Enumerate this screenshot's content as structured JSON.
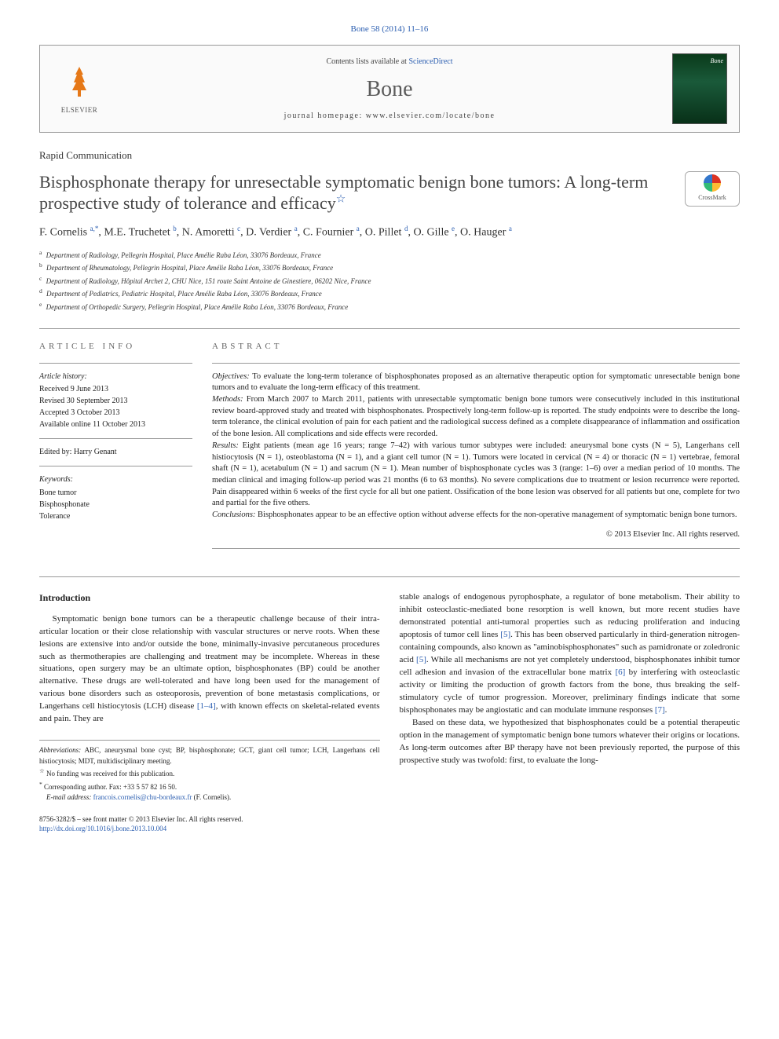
{
  "journal_ref": "Bone 58 (2014) 11–16",
  "header": {
    "contents_prefix": "Contents lists available at ",
    "contents_link": "ScienceDirect",
    "journal_name": "Bone",
    "homepage_prefix": "journal homepage: ",
    "homepage": "www.elsevier.com/locate/bone",
    "publisher": "ELSEVIER",
    "cover_label": "Bone"
  },
  "article_type": "Rapid Communication",
  "title": "Bisphosphonate therapy for unresectable symptomatic benign bone tumors: A long-term prospective study of tolerance and efficacy",
  "title_star": "☆",
  "crossmark": "CrossMark",
  "authors_html": "F. Cornelis <sup>a,*</sup>, M.E. Truchetet <sup>b</sup>, N. Amoretti <sup>c</sup>, D. Verdier <sup>a</sup>, C. Fournier <sup>a</sup>, O. Pillet <sup>d</sup>, O. Gille <sup>e</sup>, O. Hauger <sup>a</sup>",
  "affiliations": [
    {
      "sup": "a",
      "text": "Department of Radiology, Pellegrin Hospital, Place Amélie Raba Léon, 33076 Bordeaux, France"
    },
    {
      "sup": "b",
      "text": "Department of Rheumatology, Pellegrin Hospital, Place Amélie Raba Léon, 33076 Bordeaux, France"
    },
    {
      "sup": "c",
      "text": "Department of Radiology, Hôpital Archet 2, CHU Nice, 151 route Saint Antoine de Ginestiere, 06202 Nice, France"
    },
    {
      "sup": "d",
      "text": "Department of Pediatrics, Pediatric Hospital, Place Amélie Raba Léon, 33076 Bordeaux, France"
    },
    {
      "sup": "e",
      "text": "Department of Orthopedic Surgery, Pellegrin Hospital, Place Amélie Raba Léon, 33076 Bordeaux, France"
    }
  ],
  "info": {
    "heading": "ARTICLE INFO",
    "history_label": "Article history:",
    "received": "Received 9 June 2013",
    "revised": "Revised 30 September 2013",
    "accepted": "Accepted 3 October 2013",
    "online": "Available online 11 October 2013",
    "edited_by": "Edited by: Harry Genant",
    "keywords_label": "Keywords:",
    "keywords": [
      "Bone tumor",
      "Bisphosphonate",
      "Tolerance"
    ]
  },
  "abstract": {
    "heading": "ABSTRACT",
    "objectives_label": "Objectives:",
    "objectives": "To evaluate the long-term tolerance of bisphosphonates proposed as an alternative therapeutic option for symptomatic unresectable benign bone tumors and to evaluate the long-term efficacy of this treatment.",
    "methods_label": "Methods:",
    "methods": "From March 2007 to March 2011, patients with unresectable symptomatic benign bone tumors were consecutively included in this institutional review board-approved study and treated with bisphosphonates. Prospectively long-term follow-up is reported. The study endpoints were to describe the long-term tolerance, the clinical evolution of pain for each patient and the radiological success defined as a complete disappearance of inflammation and ossification of the bone lesion. All complications and side effects were recorded.",
    "results_label": "Results:",
    "results": "Eight patients (mean age 16 years; range 7–42) with various tumor subtypes were included: aneurysmal bone cysts (N = 5), Langerhans cell histiocytosis (N = 1), osteoblastoma (N = 1), and a giant cell tumor (N = 1). Tumors were located in cervical (N = 4) or thoracic (N = 1) vertebrae, femoral shaft (N = 1), acetabulum (N = 1) and sacrum (N = 1). Mean number of bisphosphonate cycles was 3 (range: 1–6) over a median period of 10 months. The median clinical and imaging follow-up period was 21 months (6 to 63 months). No severe complications due to treatment or lesion recurrence were reported. Pain disappeared within 6 weeks of the first cycle for all but one patient. Ossification of the bone lesion was observed for all patients but one, complete for two and partial for the five others.",
    "conclusions_label": "Conclusions:",
    "conclusions": "Bisphosphonates appear to be an effective option without adverse effects for the non-operative management of symptomatic benign bone tumors.",
    "copyright": "© 2013 Elsevier Inc. All rights reserved."
  },
  "body": {
    "intro_heading": "Introduction",
    "col1_p1": "Symptomatic benign bone tumors can be a therapeutic challenge because of their intra-articular location or their close relationship with vascular structures or nerve roots. When these lesions are extensive into and/or outside the bone, minimally-invasive percutaneous procedures such as thermotherapies are challenging and treatment may be incomplete. Whereas in these situations, open surgery may be an ultimate option, bisphosphonates (BP) could be another alternative. These drugs are well-tolerated and have long been used for the management of various bone disorders such as osteoporosis, prevention of bone metastasis complications, or Langerhans cell histiocytosis (LCH) disease ",
    "col1_ref1": "[1–4]",
    "col1_p1b": ", with known effects on skeletal-related events and pain. They are",
    "col2_p1a": "stable analogs of endogenous pyrophosphate, a regulator of bone metabolism. Their ability to inhibit osteoclastic-mediated bone resorption is well known, but more recent studies have demonstrated potential anti-tumoral properties such as reducing proliferation and inducing apoptosis of tumor cell lines ",
    "col2_ref5a": "[5]",
    "col2_p1b": ". This has been observed particularly in third-generation nitrogen-containing compounds, also known as \"aminobisphosphonates\" such as pamidronate or zoledronic acid ",
    "col2_ref5b": "[5]",
    "col2_p1c": ". While all mechanisms are not yet completely understood, bisphosphonates inhibit tumor cell adhesion and invasion of the extracellular bone matrix ",
    "col2_ref6": "[6]",
    "col2_p1d": " by interfering with osteoclastic activity or limiting the production of growth factors from the bone, thus breaking the self-stimulatory cycle of tumor progression. Moreover, preliminary findings indicate that some bisphosphonates may be angiostatic and can modulate immune responses ",
    "col2_ref7": "[7]",
    "col2_p1e": ".",
    "col2_p2": "Based on these data, we hypothesized that bisphosphonates could be a potential therapeutic option in the management of symptomatic benign bone tumors whatever their origins or locations. As long-term outcomes after BP therapy have not been previously reported, the purpose of this prospective study was twofold: first, to evaluate the long-"
  },
  "footnotes": {
    "abbrev_label": "Abbreviations:",
    "abbrev": "ABC, aneurysmal bone cyst; BP, bisphosphonate; GCT, giant cell tumor; LCH, Langerhans cell histiocytosis; MDT, multidisciplinary meeting.",
    "funding_mark": "☆",
    "funding": "No funding was received for this publication.",
    "corr_mark": "*",
    "corr": "Corresponding author. Fax: +33 5 57 82 16 50.",
    "email_label": "E-mail address:",
    "email": "francois.cornelis@chu-bordeaux.fr",
    "email_suffix": " (F. Cornelis)."
  },
  "doi": {
    "issn": "8756-3282/$ – see front matter © 2013 Elsevier Inc. All rights reserved.",
    "link": "http://dx.doi.org/10.1016/j.bone.2013.10.004"
  },
  "colors": {
    "link": "#2a5db0",
    "text": "#222222",
    "border": "#999999",
    "elsevier_orange": "#e67817"
  }
}
